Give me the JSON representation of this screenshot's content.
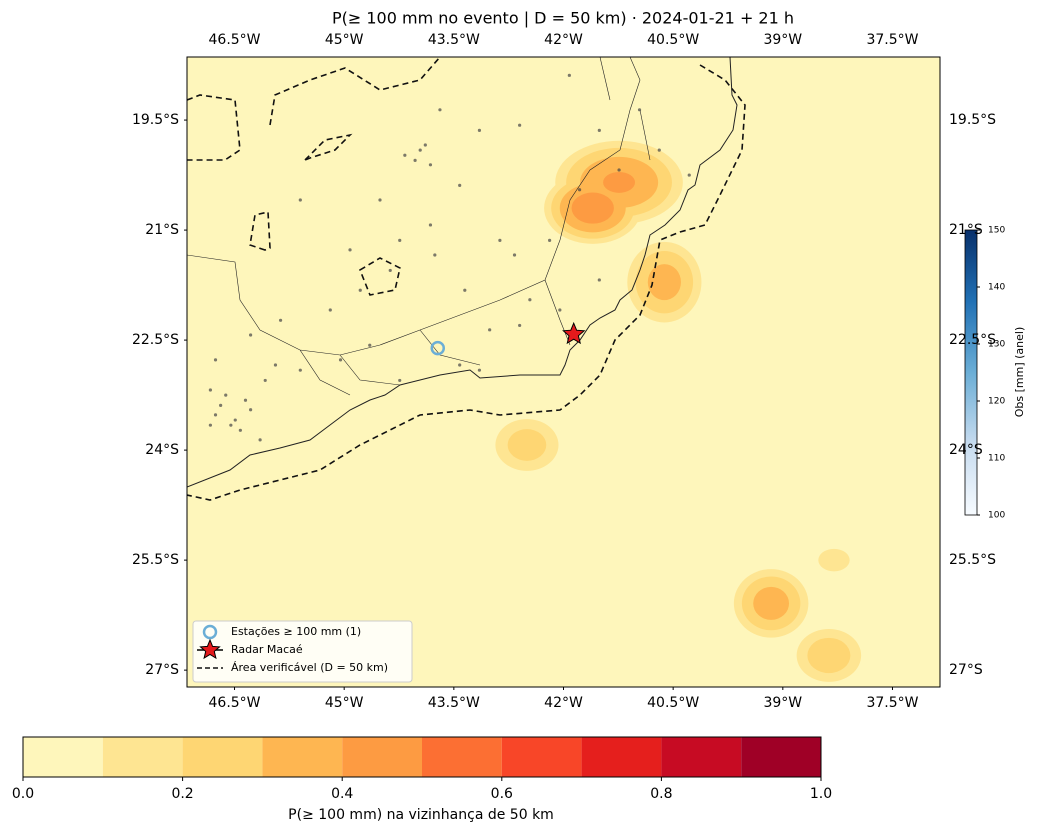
{
  "chart_data": {
    "type": "map",
    "title": "P(≥ 100 mm no evento | D = 50 km)  ·  2024-01-21 + 21 h",
    "xlim": [
      -47.15,
      -36.85
    ],
    "ylim": [
      -27.23,
      -18.64
    ],
    "xticks": [
      {
        "value": -46.5,
        "label": "46.5°W"
      },
      {
        "value": -45,
        "label": "45°W"
      },
      {
        "value": -43.5,
        "label": "43.5°W"
      },
      {
        "value": -42,
        "label": "42°W"
      },
      {
        "value": -40.5,
        "label": "40.5°W"
      },
      {
        "value": -39,
        "label": "39°W"
      },
      {
        "value": -37.5,
        "label": "37.5°W"
      }
    ],
    "yticks": [
      {
        "value": -19.5,
        "label": "19.5°S"
      },
      {
        "value": -21,
        "label": "21°S"
      },
      {
        "value": -22.5,
        "label": "22.5°S"
      },
      {
        "value": -24,
        "label": "24°S"
      },
      {
        "value": -25.5,
        "label": "25.5°S"
      },
      {
        "value": -27,
        "label": "27°S"
      }
    ],
    "probability_fields": [
      {
        "lon": -41.24,
        "lat": -20.35,
        "rx": 1.0,
        "ry": 0.65,
        "peak": 0.42
      },
      {
        "lon": -41.6,
        "lat": -20.7,
        "rx": 0.75,
        "ry": 0.55,
        "peak": 0.47
      },
      {
        "lon": -40.62,
        "lat": -21.71,
        "rx": 0.6,
        "ry": 0.65,
        "peak": 0.35
      },
      {
        "lon": -42.5,
        "lat": -23.93,
        "rx": 0.55,
        "ry": 0.45,
        "peak": 0.26
      },
      {
        "lon": -39.16,
        "lat": -26.09,
        "rx": 0.6,
        "ry": 0.55,
        "peak": 0.36
      },
      {
        "lon": -38.37,
        "lat": -26.8,
        "rx": 0.55,
        "ry": 0.45,
        "peak": 0.28
      },
      {
        "lon": -38.3,
        "lat": -25.5,
        "rx": 0.35,
        "ry": 0.25,
        "peak": 0.16
      }
    ],
    "stations": {
      "color": "#444444",
      "lon": [
        -43.96,
        -44.03,
        -43.89,
        -44.17,
        -43.82,
        -42.6,
        -42.87,
        -42.67,
        -43.35,
        -43.82,
        -44.78,
        -45.87,
        -46.28,
        -46.76,
        -46.83,
        -46.69,
        -46.55,
        -46.42,
        -46.76,
        -46.62,
        -46.28,
        -46.08,
        -45.6,
        -45.05,
        -44.65,
        -44.24,
        -43.42,
        -43.15,
        -43.01,
        -42.6,
        -42.46,
        -42.19,
        -41.92,
        -41.51,
        -40.96,
        -40.69,
        -40.28,
        -41.24,
        -41.78,
        -44.92,
        -45.6,
        -44.51,
        -43.42,
        -43.15,
        -43.69,
        -44.37,
        -45.19,
        -46.15,
        -46.49,
        -46.35,
        -46.83,
        -45.94,
        -42.05,
        -41.51,
        -43.76,
        -44.24
      ],
      "lat": [
        -19.91,
        -20.05,
        -19.84,
        -19.98,
        -20.11,
        -19.57,
        -21.14,
        -21.34,
        -21.82,
        -20.93,
        -21.82,
        -22.23,
        -22.43,
        -22.77,
        -23.18,
        -23.39,
        -23.66,
        -23.73,
        -23.52,
        -23.25,
        -23.45,
        -23.05,
        -22.91,
        -22.77,
        -22.57,
        -23.05,
        -22.84,
        -22.91,
        -22.36,
        -22.3,
        -21.95,
        -21.14,
        -18.89,
        -19.64,
        -19.36,
        -19.91,
        -20.25,
        -20.18,
        -20.45,
        -21.27,
        -20.59,
        -20.59,
        -20.39,
        -19.64,
        -19.36,
        -21.55,
        -22.09,
        -23.86,
        -23.59,
        -23.32,
        -23.66,
        -22.84,
        -22.09,
        -21.68,
        -21.34,
        -21.14
      ]
    },
    "exceedances": {
      "name": "Estações ≥ 100 mm (1)",
      "lon": [
        -43.72
      ],
      "lat": [
        -22.61
      ],
      "obs": [
        125
      ]
    },
    "radar": {
      "name": "Radar Macaé",
      "lon": -41.86,
      "lat": -22.42,
      "color": "#e41a1c"
    },
    "verifiable_area": {
      "name": "Área verificável (D = 50 km)"
    },
    "colorbar": {
      "label": "P(≥ 100 mm) na vizinhança de 50 km",
      "levels": [
        0,
        0.1,
        0.2,
        0.3,
        0.4,
        0.5,
        0.6,
        0.7,
        0.8,
        0.9,
        1
      ],
      "colors": [
        "#fef6bb",
        "#fee592",
        "#fed673",
        "#feb651",
        "#fd9b42",
        "#fc6f33",
        "#f84628",
        "#e51f1d",
        "#c70b23",
        "#9f0026"
      ],
      "ticks": [
        {
          "value": 0,
          "label": "0.0"
        },
        0.2,
        0.4,
        0.6,
        0.8,
        {
          "value": 1,
          "label": "1.0"
        }
      ]
    },
    "obs_colorbar": {
      "label": "Obs [mm] (anel)",
      "range": [
        100,
        150
      ],
      "ticks": [
        100,
        110,
        120,
        130,
        140,
        150
      ],
      "colors": [
        "#f7fbff",
        "#c6dbef",
        "#6baed6",
        "#2171b5",
        "#08306b"
      ]
    }
  }
}
